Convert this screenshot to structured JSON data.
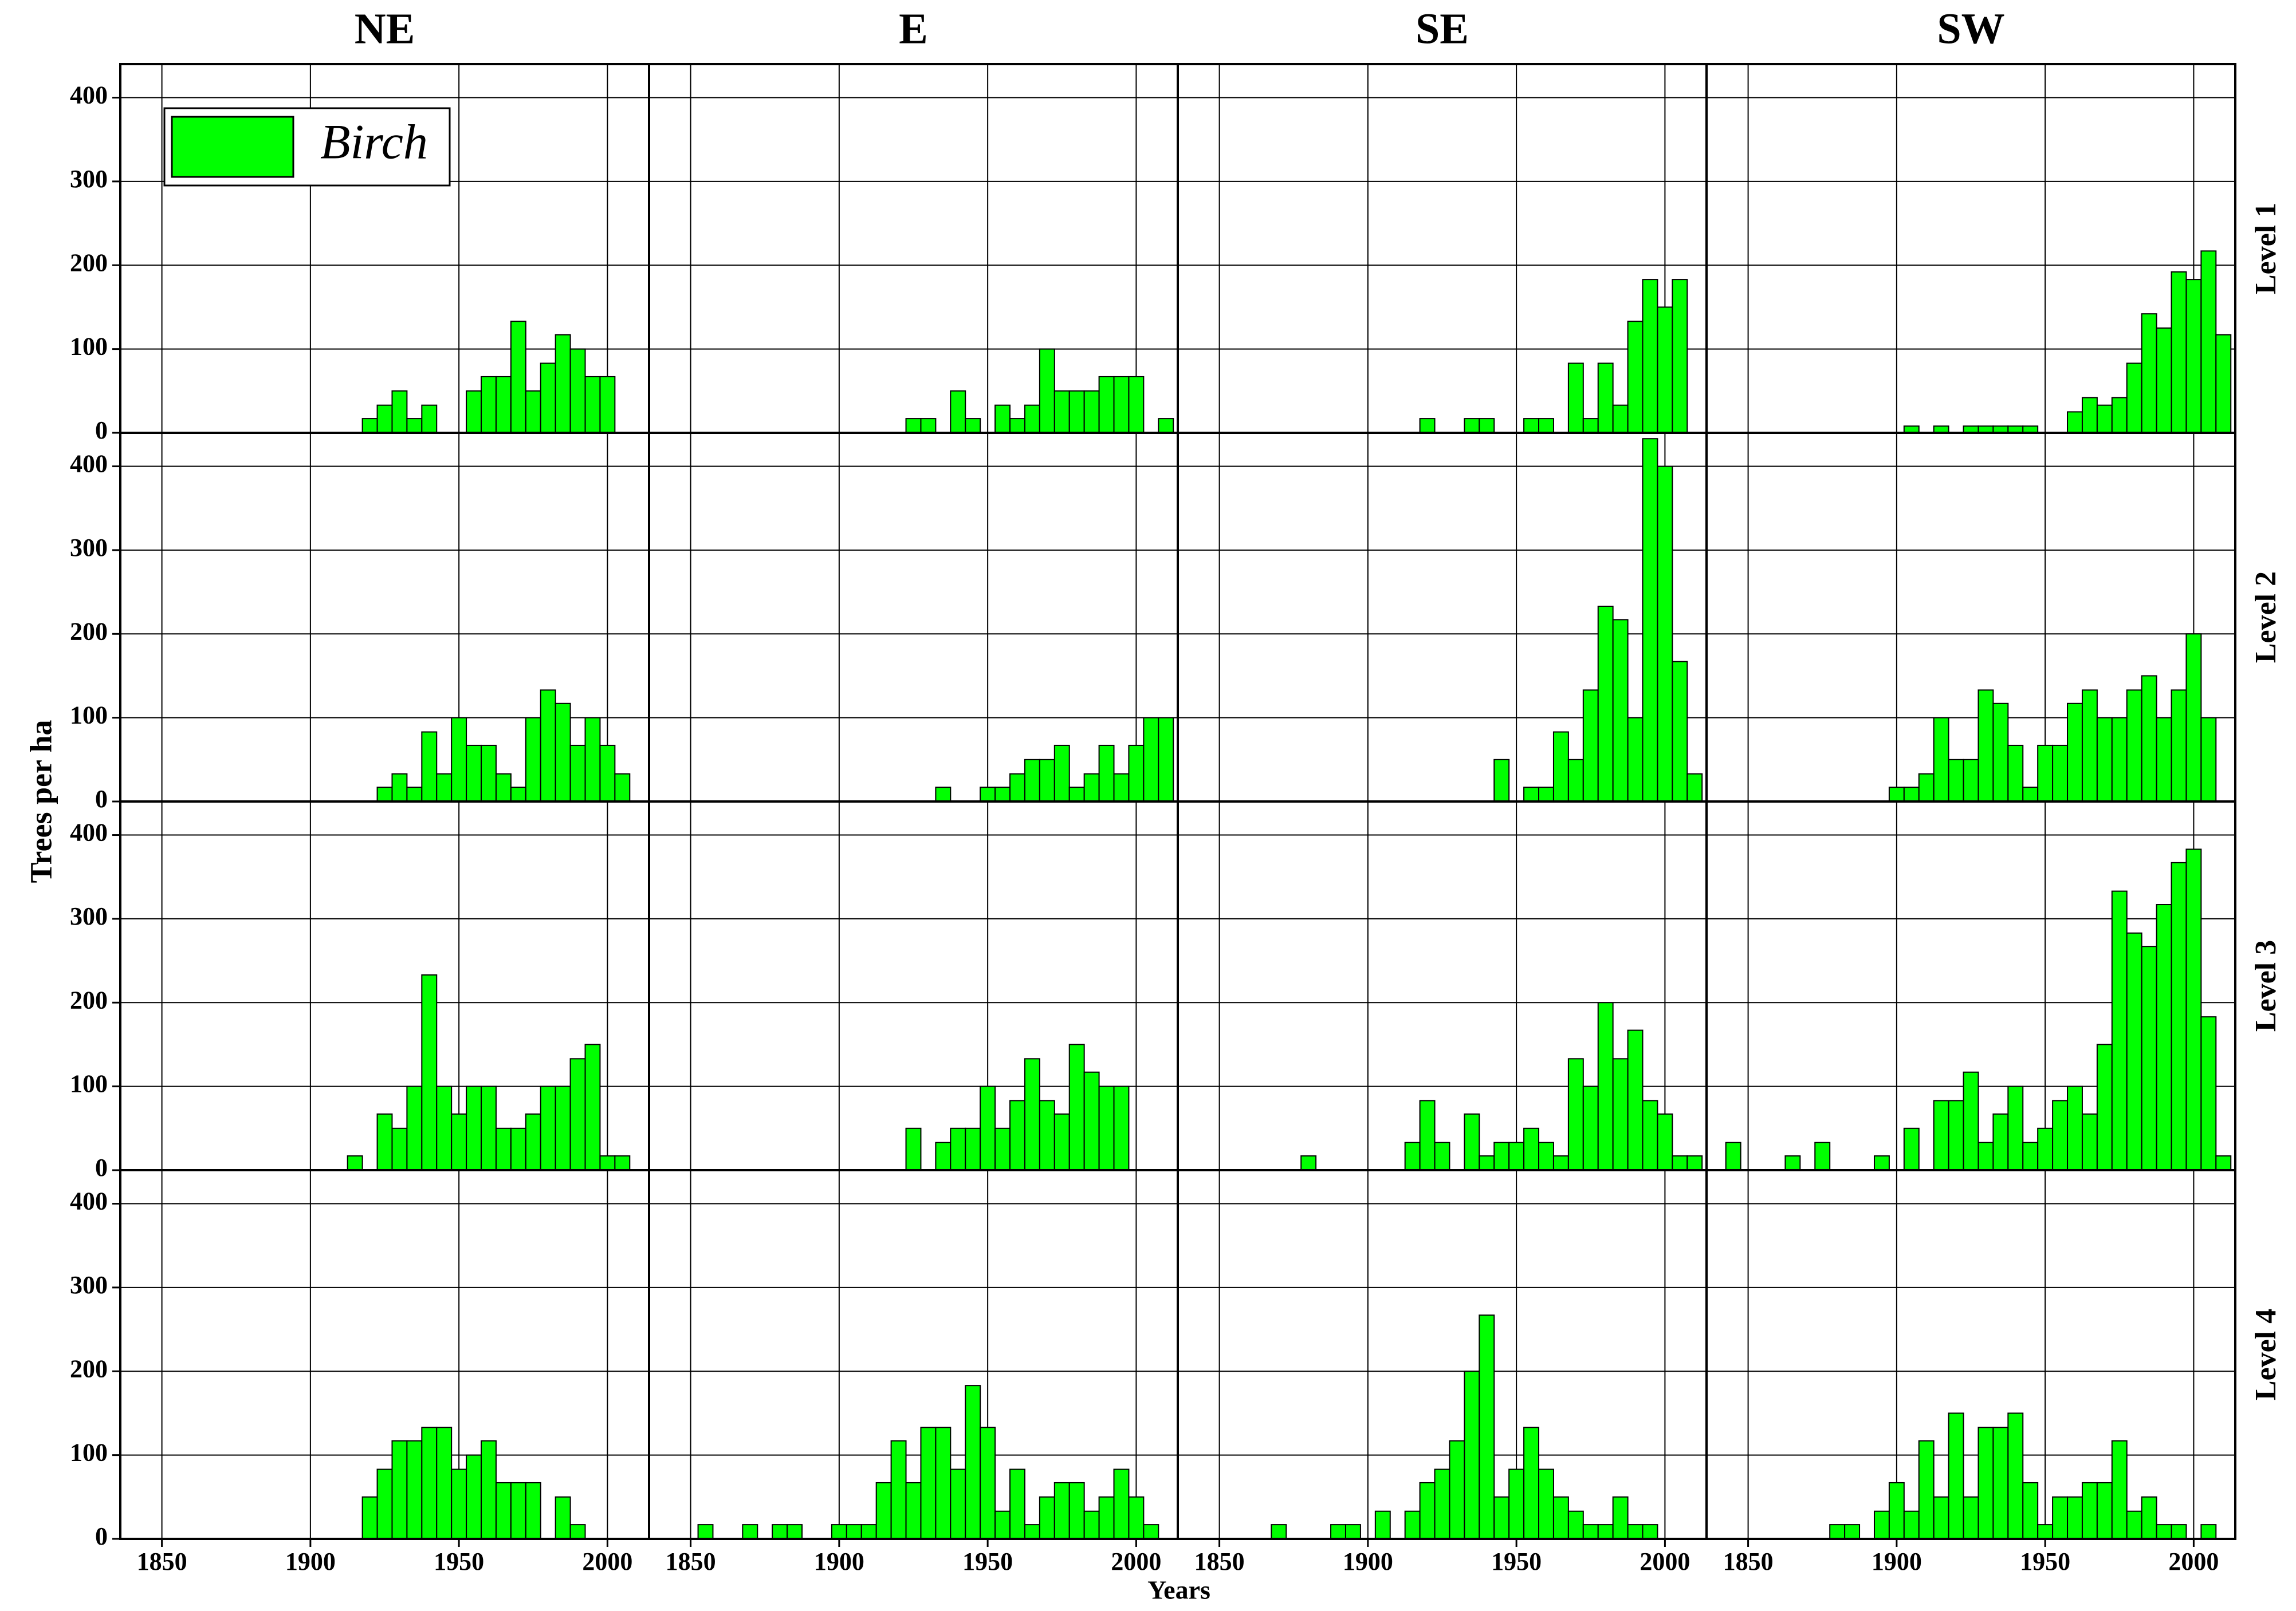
{
  "chart_data": {
    "type": "histogram",
    "columns": [
      "NE",
      "E",
      "SE",
      "SW"
    ],
    "rows": [
      "Level 1",
      "Level 2",
      "Level 3",
      "Level 4"
    ],
    "ylabel": "Trees per ha",
    "xlabel": "Years",
    "legend": "Birch",
    "color": "#00ff00",
    "xlim": [
      1836,
      2014
    ],
    "xticks": [
      1850,
      1900,
      1950,
      2000
    ],
    "ylim": [
      0,
      440
    ],
    "yticks": [
      0,
      100,
      200,
      300,
      400
    ],
    "grid": true,
    "bins": [
      1842.5,
      1847.5,
      1852.5,
      1857.5,
      1862.5,
      1867.5,
      1872.5,
      1877.5,
      1882.5,
      1887.5,
      1892.5,
      1897.5,
      1902.5,
      1907.5,
      1912.5,
      1917.5,
      1922.5,
      1927.5,
      1932.5,
      1937.5,
      1942.5,
      1947.5,
      1952.5,
      1957.5,
      1962.5,
      1967.5,
      1972.5,
      1977.5,
      1982.5,
      1987.5,
      1992.5,
      1997.5,
      2002.5,
      2007.5,
      2012.5
    ],
    "panels": [
      {
        "values": [
          0,
          0,
          0,
          0,
          0,
          0,
          0,
          0,
          0,
          0,
          0,
          0,
          0,
          0,
          0,
          17,
          33,
          50,
          17,
          33,
          0,
          0,
          50,
          67,
          67,
          133,
          50,
          83,
          117,
          100,
          67,
          67,
          0,
          0
        ]
      },
      {
        "values": [
          0,
          0,
          0,
          0,
          0,
          0,
          0,
          0,
          0,
          0,
          0,
          0,
          0,
          0,
          0,
          0,
          17,
          17,
          0,
          50,
          17,
          0,
          33,
          17,
          33,
          100,
          50,
          50,
          50,
          67,
          67,
          67,
          0,
          17
        ]
      },
      {
        "values": [
          0,
          0,
          0,
          0,
          0,
          0,
          0,
          0,
          0,
          0,
          0,
          0,
          0,
          0,
          0,
          17,
          0,
          0,
          17,
          17,
          0,
          0,
          17,
          17,
          0,
          83,
          17,
          83,
          33,
          133,
          183,
          150,
          183,
          0
        ]
      },
      {
        "values": [
          0,
          0,
          0,
          0,
          0,
          0,
          0,
          0,
          0,
          0,
          0,
          0,
          8,
          0,
          8,
          0,
          8,
          8,
          8,
          8,
          8,
          0,
          0,
          25,
          42,
          33,
          42,
          83,
          142,
          125,
          192,
          183,
          217,
          117
        ]
      },
      {
        "values": [
          0,
          0,
          0,
          0,
          0,
          0,
          0,
          0,
          0,
          0,
          0,
          0,
          0,
          0,
          0,
          0,
          17,
          33,
          17,
          83,
          33,
          100,
          67,
          67,
          33,
          17,
          100,
          133,
          117,
          67,
          100,
          67,
          33,
          0
        ]
      },
      {
        "values": [
          0,
          0,
          0,
          0,
          0,
          0,
          0,
          0,
          0,
          0,
          0,
          0,
          0,
          0,
          0,
          0,
          0,
          0,
          17,
          0,
          0,
          17,
          17,
          33,
          50,
          50,
          67,
          17,
          33,
          67,
          33,
          67,
          100,
          100
        ]
      },
      {
        "values": [
          0,
          0,
          0,
          0,
          0,
          0,
          0,
          0,
          0,
          0,
          0,
          0,
          0,
          0,
          0,
          0,
          0,
          0,
          0,
          0,
          50,
          0,
          17,
          17,
          83,
          50,
          133,
          233,
          217,
          100,
          433,
          400,
          167,
          33
        ]
      },
      {
        "values": [
          0,
          0,
          0,
          0,
          0,
          0,
          0,
          0,
          0,
          0,
          0,
          17,
          17,
          33,
          100,
          50,
          50,
          133,
          117,
          67,
          17,
          67,
          67,
          117,
          133,
          100,
          100,
          133,
          150,
          100,
          133,
          200,
          100,
          0
        ]
      },
      {
        "values": [
          0,
          0,
          0,
          0,
          0,
          0,
          0,
          0,
          0,
          0,
          0,
          0,
          0,
          0,
          17,
          0,
          67,
          50,
          100,
          233,
          100,
          67,
          100,
          100,
          50,
          50,
          67,
          100,
          100,
          133,
          150,
          17,
          17,
          0
        ]
      },
      {
        "values": [
          0,
          0,
          0,
          0,
          0,
          0,
          0,
          0,
          0,
          0,
          0,
          0,
          0,
          0,
          0,
          0,
          50,
          0,
          33,
          50,
          50,
          100,
          50,
          83,
          133,
          83,
          67,
          150,
          117,
          100,
          100,
          0,
          0,
          0
        ]
      },
      {
        "values": [
          0,
          0,
          0,
          0,
          0,
          0,
          0,
          17,
          0,
          0,
          0,
          0,
          0,
          0,
          33,
          83,
          33,
          0,
          67,
          17,
          33,
          33,
          50,
          33,
          17,
          133,
          100,
          200,
          133,
          167,
          83,
          67,
          17,
          17
        ]
      },
      {
        "values": [
          33,
          0,
          0,
          0,
          17,
          0,
          33,
          0,
          0,
          0,
          17,
          0,
          50,
          0,
          83,
          83,
          117,
          33,
          67,
          100,
          33,
          50,
          83,
          100,
          67,
          150,
          333,
          283,
          267,
          317,
          367,
          383,
          183,
          17
        ]
      },
      {
        "values": [
          0,
          0,
          0,
          0,
          0,
          0,
          0,
          0,
          0,
          0,
          0,
          0,
          0,
          0,
          0,
          50,
          83,
          117,
          117,
          133,
          133,
          83,
          100,
          117,
          67,
          67,
          67,
          0,
          50,
          17,
          0,
          0,
          0,
          0
        ]
      },
      {
        "values": [
          0,
          0,
          17,
          0,
          0,
          17,
          0,
          17,
          17,
          0,
          0,
          17,
          17,
          17,
          67,
          117,
          67,
          133,
          133,
          83,
          183,
          133,
          33,
          83,
          17,
          50,
          67,
          67,
          33,
          50,
          83,
          50,
          17,
          0
        ]
      },
      {
        "values": [
          0,
          0,
          0,
          0,
          0,
          17,
          0,
          0,
          0,
          17,
          17,
          0,
          33,
          0,
          33,
          67,
          83,
          117,
          200,
          267,
          50,
          83,
          133,
          83,
          50,
          33,
          17,
          17,
          50,
          17,
          17,
          0,
          0,
          0
        ]
      },
      {
        "values": [
          0,
          0,
          0,
          0,
          0,
          0,
          0,
          17,
          17,
          0,
          33,
          67,
          33,
          117,
          50,
          150,
          50,
          133,
          133,
          150,
          67,
          17,
          50,
          50,
          67,
          67,
          117,
          33,
          50,
          17,
          17,
          0,
          17,
          0
        ]
      }
    ]
  }
}
